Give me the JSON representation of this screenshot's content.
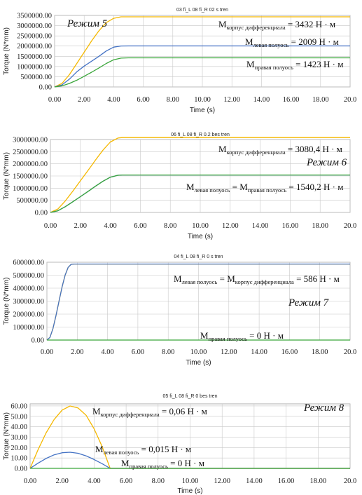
{
  "charts": [
    {
      "title": "03 fi_L 08 fi_R 02 s tren",
      "xlabel": "Time (s)",
      "ylabel": "Torque (N*mm)",
      "mode_label": "Режим 5",
      "x_ticks": [
        "0.00",
        "2.00",
        "4.00",
        "6.00",
        "8.00",
        "10.00",
        "12.00",
        "14.00",
        "16.00",
        "18.00",
        "20.0"
      ],
      "y_ticks": [
        "0.00",
        "500000.00",
        "1000000.00",
        "1500000.00",
        "2000000.00",
        "2500000.00",
        "3000000.00",
        "3500000.00"
      ],
      "ylim": [
        0,
        3500000
      ],
      "ytick_color": "#7a2a8a",
      "annotations": [
        {
          "main": "M",
          "sub": "корпус дифференциала",
          "rest": " = 3432 Н · м"
        },
        {
          "main": "M",
          "sub": "левая полуось",
          "rest": " = 2009 Н · м"
        },
        {
          "main": "M",
          "sub": "правая полуось",
          "rest": "  = 1423 Н · м"
        }
      ]
    },
    {
      "title": "06 fi_L 08 fi_R 0.2 bes tren",
      "xlabel": "Time (s)",
      "ylabel": "Torque (N*mm)",
      "mode_label": "Режим 6",
      "x_ticks": [
        "0.00",
        "2.00",
        "4.00",
        "6.00",
        "8.00",
        "10.00",
        "12.00",
        "14.00",
        "16.00",
        "18.00",
        "20.0"
      ],
      "y_ticks": [
        "0.00",
        "500000.00",
        "1000000.00",
        "1500000.00",
        "2000000.00",
        "2500000.00",
        "3000000.00"
      ],
      "ylim": [
        0,
        3000000
      ],
      "ytick_color": "#222222",
      "annotations": [
        {
          "main": "M",
          "sub": "корпус дифференциала",
          "rest": " = 3080,4 Н · м"
        },
        {
          "main": "M",
          "sub": "левая полуось",
          "rest": " = ",
          "main2": "M",
          "sub2": "правая полуось",
          "rest2": " = 1540,2 Н · м"
        }
      ]
    },
    {
      "title": "04 fi_L 08 fi_R 0 s tren",
      "xlabel": "Time (s)",
      "ylabel": "Torque (N*mm)",
      "mode_label": "Режим 7",
      "x_ticks": [
        "0.00",
        "2.00",
        "4.00",
        "6.00",
        "8.00",
        "10.00",
        "12.00",
        "14.00",
        "16.00",
        "18.00",
        "20.0"
      ],
      "y_ticks": [
        "0.00",
        "100000.00",
        "200000.00",
        "300000.00",
        "400000.00",
        "500000.00",
        "600000.00"
      ],
      "ylim": [
        0,
        600000
      ],
      "ytick_color": "#7a2a8a",
      "annotations": [
        {
          "main": "M",
          "sub": "левая полуось",
          "rest": " = ",
          "main2": "M",
          "sub2": "корпус дифференциала",
          "rest2": " = 586 Н · м"
        },
        {
          "main": "M",
          "sub": "правая полуось",
          "rest": " =  0 Н · м"
        }
      ]
    },
    {
      "title": "05 fi_L 08 fi_R 0 bes tren",
      "xlabel": "Time (s)",
      "ylabel": "Torque (N*mm)",
      "mode_label": "Режим 8",
      "x_ticks": [
        "0.00",
        "2.00",
        "4.00",
        "6.00",
        "8.00",
        "10.00",
        "12.00",
        "14.00",
        "16.00",
        "18.00",
        "20.0"
      ],
      "y_ticks": [
        "0.00",
        "10.00",
        "20.00",
        "30.00",
        "40.00",
        "50.00",
        "60.00"
      ],
      "ylim": [
        0,
        62
      ],
      "ytick_color": "#222222",
      "annotations": [
        {
          "main": "M",
          "sub": "корпус дифференциала",
          "rest": " = 0,06 Н · м"
        },
        {
          "main": "M",
          "sub": "левая полуось",
          "rest": " = 0,015 Н · м"
        },
        {
          "main": "M",
          "sub": "правая полуось",
          "rest": " = 0 Н · м"
        }
      ]
    }
  ],
  "chart_data": [
    {
      "type": "line",
      "title": "03 fi_L 08 fi_R 02 s tren",
      "xlabel": "Time (s)",
      "ylabel": "Torque (N*mm)",
      "xlim": [
        0,
        20
      ],
      "ylim": [
        0,
        3500000
      ],
      "grid": true,
      "colors": [
        "#f5b800",
        "#4472c4",
        "#3aa63a"
      ],
      "series": [
        {
          "x": [
            0,
            0.5,
            1,
            1.5,
            2,
            2.5,
            3,
            3.5,
            4,
            4.5,
            4.8,
            5,
            10,
            15,
            20
          ],
          "y": [
            0,
            170000,
            600000,
            1150000,
            1700000,
            2250000,
            2750000,
            3150000,
            3360000,
            3430000,
            3432000,
            3432000,
            3432000,
            3432000,
            3432000
          ]
        },
        {
          "x": [
            0,
            0.5,
            1,
            1.5,
            2,
            2.5,
            3,
            3.5,
            4,
            4.5,
            5,
            10,
            15,
            20
          ],
          "y": [
            0,
            100000,
            380000,
            740000,
            1020000,
            1260000,
            1500000,
            1760000,
            1950000,
            2005000,
            2009000,
            2009000,
            2009000,
            2009000
          ]
        },
        {
          "x": [
            0,
            0.5,
            1,
            1.5,
            2,
            2.5,
            3,
            3.5,
            4,
            4.5,
            5,
            10,
            15,
            20
          ],
          "y": [
            0,
            50000,
            170000,
            330000,
            520000,
            720000,
            930000,
            1150000,
            1330000,
            1410000,
            1423000,
            1423000,
            1423000,
            1423000
          ]
        }
      ]
    },
    {
      "type": "line",
      "title": "06 fi_L 08 fi_R 0.2 bes tren",
      "xlabel": "Time (s)",
      "ylabel": "Torque (N*mm)",
      "xlim": [
        0,
        20
      ],
      "ylim": [
        0,
        3000000
      ],
      "grid": true,
      "colors": [
        "#f5b800",
        "#4472c4",
        "#3aa63a"
      ],
      "series": [
        {
          "x": [
            0,
            0.5,
            1,
            1.5,
            2,
            2.5,
            3,
            3.5,
            4,
            4.5,
            4.8,
            5,
            10,
            15,
            20
          ],
          "y": [
            0,
            140000,
            480000,
            880000,
            1300000,
            1720000,
            2150000,
            2560000,
            2900000,
            3060000,
            3080400,
            3080400,
            3080400,
            3080400,
            3080400
          ]
        },
        {
          "x": [
            0,
            0.5,
            1,
            1.5,
            2,
            2.5,
            3,
            3.5,
            4,
            4.5,
            4.8,
            5,
            10,
            15,
            20
          ],
          "y": [
            0,
            70000,
            240000,
            440000,
            650000,
            860000,
            1075000,
            1280000,
            1450000,
            1530000,
            1540200,
            1540200,
            1540200,
            1540200,
            1540200
          ]
        },
        {
          "x": [
            0,
            0.5,
            1,
            1.5,
            2,
            2.5,
            3,
            3.5,
            4,
            4.5,
            4.8,
            5,
            10,
            15,
            20
          ],
          "y": [
            0,
            70000,
            240000,
            440000,
            650000,
            860000,
            1075000,
            1280000,
            1450000,
            1530000,
            1540200,
            1540200,
            1540200,
            1540200,
            1540200
          ]
        }
      ]
    },
    {
      "type": "line",
      "title": "04 fi_L 08 fi_R 0 s tren",
      "xlabel": "Time (s)",
      "ylabel": "Torque (N*mm)",
      "xlim": [
        0,
        20
      ],
      "ylim": [
        0,
        600000
      ],
      "grid": true,
      "colors": [
        "#f5b800",
        "#4472c4",
        "#3aa63a"
      ],
      "series": [
        {
          "x": [
            0,
            0.2,
            0.4,
            0.6,
            0.8,
            1.0,
            1.2,
            1.4,
            1.6,
            1.8,
            5,
            10,
            15,
            20
          ],
          "y": [
            0,
            20000,
            90000,
            190000,
            300000,
            410000,
            500000,
            560000,
            584000,
            586000,
            586000,
            586000,
            586000,
            586000
          ]
        },
        {
          "x": [
            0,
            0.2,
            0.4,
            0.6,
            0.8,
            1.0,
            1.2,
            1.4,
            1.6,
            1.8,
            5,
            10,
            15,
            20
          ],
          "y": [
            0,
            20000,
            90000,
            190000,
            300000,
            410000,
            500000,
            560000,
            584000,
            586000,
            586000,
            586000,
            586000,
            586000
          ]
        },
        {
          "x": [
            0,
            5,
            10,
            15,
            20
          ],
          "y": [
            0,
            0,
            0,
            0,
            0
          ]
        }
      ]
    },
    {
      "type": "line",
      "title": "05 fi_L 08 fi_R 0 bes tren",
      "xlabel": "Time (s)",
      "ylabel": "Torque (N*mm)",
      "xlim": [
        0,
        20
      ],
      "ylim": [
        0,
        62
      ],
      "grid": true,
      "colors": [
        "#f5b800",
        "#4472c4",
        "#3aa63a"
      ],
      "series": [
        {
          "x": [
            0,
            0.5,
            1,
            1.5,
            2,
            2.5,
            3,
            3.5,
            4,
            4.5,
            5,
            6,
            10,
            15,
            20
          ],
          "y": [
            0,
            18,
            34,
            47,
            56,
            60,
            58,
            51,
            38,
            21,
            0,
            0,
            0,
            0,
            0
          ]
        },
        {
          "x": [
            0,
            0.5,
            1,
            1.5,
            2,
            2.5,
            3,
            3.5,
            4,
            4.5,
            5,
            6,
            10,
            15,
            20
          ],
          "y": [
            0,
            5,
            9.5,
            13,
            15,
            15.5,
            14.5,
            12,
            8.5,
            4.5,
            0,
            0,
            0,
            0,
            0
          ]
        },
        {
          "x": [
            0,
            5,
            10,
            15,
            20
          ],
          "y": [
            0,
            0,
            0,
            0,
            0
          ]
        }
      ]
    }
  ]
}
